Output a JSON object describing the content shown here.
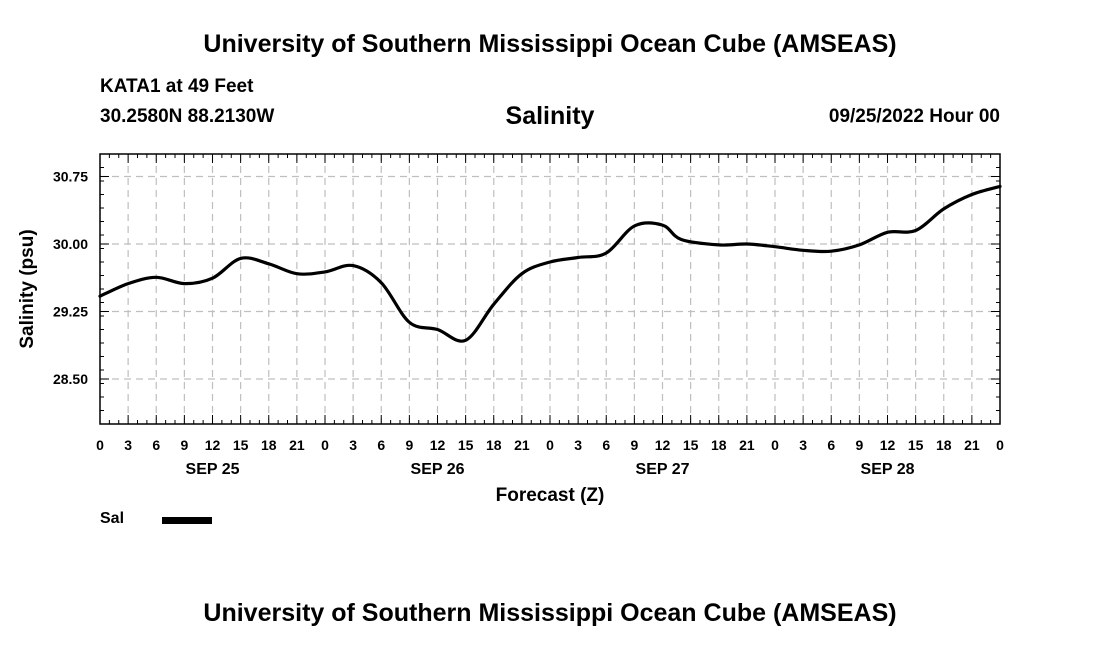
{
  "header": {
    "title": "University of Southern Mississippi Ocean Cube (AMSEAS)",
    "station": "KATA1 at 49 Feet",
    "coordinates": "30.2580N  88.2130W",
    "chart_title": "Salinity",
    "datetime": "09/25/2022 Hour 00"
  },
  "footer": {
    "title": "University of Southern Mississippi Ocean Cube (AMSEAS)"
  },
  "legend": {
    "label": "Sal"
  },
  "chart_data": {
    "type": "line",
    "title": "Salinity",
    "xlabel": "Forecast (Z)",
    "ylabel": "Salinity (psu)",
    "xlim": [
      0,
      96
    ],
    "ylim": [
      28.0,
      31.0
    ],
    "yticks": [
      28.5,
      29.25,
      30.0,
      30.75
    ],
    "ytick_labels": [
      "28.50",
      "29.25",
      "30.00",
      "30.75"
    ],
    "xtick_hours": [
      0,
      3,
      6,
      9,
      12,
      15,
      18,
      21,
      24,
      27,
      30,
      33,
      36,
      39,
      42,
      45,
      48,
      51,
      54,
      57,
      60,
      63,
      66,
      69,
      72,
      75,
      78,
      81,
      84,
      87,
      90,
      93,
      96
    ],
    "xtick_labels": [
      "0",
      "3",
      "6",
      "9",
      "12",
      "15",
      "18",
      "21",
      "0",
      "3",
      "6",
      "9",
      "12",
      "15",
      "18",
      "21",
      "0",
      "3",
      "6",
      "9",
      "12",
      "15",
      "18",
      "21",
      "0",
      "3",
      "6",
      "9",
      "12",
      "15",
      "18",
      "21",
      "0"
    ],
    "day_labels": [
      {
        "hour": 12,
        "text": "SEP 25"
      },
      {
        "hour": 36,
        "text": "SEP 26"
      },
      {
        "hour": 60,
        "text": "SEP 27"
      },
      {
        "hour": 84,
        "text": "SEP 28"
      }
    ],
    "grid": true,
    "series": [
      {
        "name": "Sal",
        "color": "#000000",
        "x": [
          0,
          3,
          6,
          9,
          12,
          15,
          18,
          21,
          24,
          27,
          30,
          33,
          36,
          39,
          42,
          45,
          48,
          51,
          54,
          57,
          60,
          62,
          66,
          69,
          72,
          75,
          78,
          81,
          84,
          87,
          90,
          93,
          96
        ],
        "y": [
          29.42,
          29.56,
          29.63,
          29.56,
          29.62,
          29.84,
          29.78,
          29.67,
          29.69,
          29.76,
          29.57,
          29.13,
          29.05,
          28.93,
          29.33,
          29.67,
          29.8,
          29.85,
          29.9,
          30.2,
          30.21,
          30.05,
          29.99,
          30.0,
          29.97,
          29.93,
          29.92,
          29.99,
          30.13,
          30.15,
          30.39,
          30.55,
          30.64
        ]
      }
    ]
  }
}
